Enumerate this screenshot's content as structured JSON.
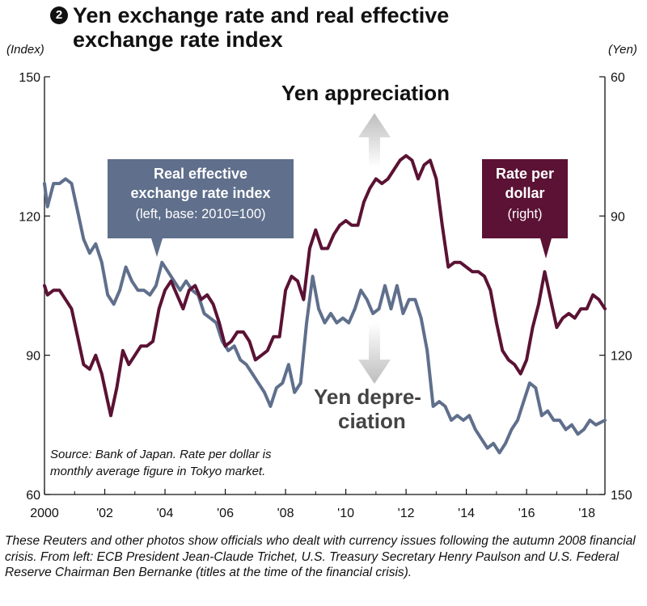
{
  "title_number": "2",
  "title": "Yen exchange rate and real effective exchange rate index",
  "left_unit": "(Index)",
  "right_unit": "(Yen)",
  "labels": {
    "appreciation": "Yen appreciation",
    "depreciation_1": "Yen depre-",
    "depreciation_2": "ciation",
    "reer_line1": "Real effective",
    "reer_line2": "exchange rate index",
    "reer_line3": "(left, base: 2010=100)",
    "rate_line1": "Rate per",
    "rate_line2": "dollar",
    "rate_line3": "(right)",
    "source_1": "Source: Bank of Japan. Rate per dollar is",
    "source_2": "monthly average figure in Tokyo market."
  },
  "caption": "These Reuters and other photos show officials who dealt with currency issues following the autumn 2008 financial crisis. From left: ECB President Jean-Claude Trichet, U.S. Treasury Secretary Henry Paulson and U.S. Federal Reserve Chairman Ben Bernanke (titles at the time of the financial crisis).",
  "colors": {
    "reer": "#5f6f8c",
    "rate": "#5b1234",
    "arrow": "#c4c4c4"
  },
  "chart_data": {
    "type": "line",
    "title": "Yen exchange rate and real effective exchange rate index",
    "x_ticks": [
      "2000",
      "'02",
      "'04",
      "'06",
      "'08",
      "'10",
      "'12",
      "'14",
      "'16",
      "'18"
    ],
    "x_range": [
      2000.0,
      2018.6
    ],
    "left_axis": {
      "label": "(Index)",
      "range": [
        60,
        150
      ],
      "ticks": [
        "150",
        "120",
        "90",
        "60"
      ]
    },
    "right_axis": {
      "label": "(Yen)",
      "range": [
        150,
        60
      ],
      "inverted": true,
      "ticks": [
        "60",
        "90",
        "120",
        "150"
      ]
    },
    "series": [
      {
        "name": "Real effective exchange rate index",
        "axis": "left",
        "x": [
          2000.0,
          2000.1,
          2000.3,
          2000.5,
          2000.7,
          2000.9,
          2001.1,
          2001.3,
          2001.5,
          2001.7,
          2001.9,
          2002.1,
          2002.3,
          2002.5,
          2002.7,
          2002.9,
          2003.1,
          2003.3,
          2003.5,
          2003.7,
          2003.9,
          2004.1,
          2004.3,
          2004.5,
          2004.7,
          2004.9,
          2005.1,
          2005.3,
          2005.5,
          2005.7,
          2005.9,
          2006.1,
          2006.3,
          2006.5,
          2006.7,
          2006.9,
          2007.1,
          2007.3,
          2007.5,
          2007.7,
          2007.9,
          2008.1,
          2008.3,
          2008.5,
          2008.7,
          2008.9,
          2009.1,
          2009.3,
          2009.5,
          2009.7,
          2009.9,
          2010.1,
          2010.3,
          2010.5,
          2010.7,
          2010.9,
          2011.1,
          2011.3,
          2011.5,
          2011.7,
          2011.9,
          2012.1,
          2012.3,
          2012.5,
          2012.7,
          2012.9,
          2013.1,
          2013.3,
          2013.5,
          2013.7,
          2013.9,
          2014.1,
          2014.3,
          2014.5,
          2014.7,
          2014.9,
          2015.1,
          2015.3,
          2015.5,
          2015.7,
          2015.9,
          2016.1,
          2016.3,
          2016.5,
          2016.7,
          2016.9,
          2017.1,
          2017.3,
          2017.5,
          2017.7,
          2017.9,
          2018.1,
          2018.3,
          2018.6
        ],
        "values": [
          127,
          122,
          127,
          127,
          128,
          127,
          121,
          115,
          112,
          114,
          110,
          103,
          101,
          104,
          109,
          106,
          104,
          104,
          103,
          105,
          110,
          108,
          106,
          104,
          106,
          104,
          103,
          99,
          98,
          97,
          93,
          91,
          92,
          89,
          88,
          86,
          84,
          82,
          79,
          83,
          84,
          88,
          82,
          84,
          97,
          107,
          100,
          97,
          99,
          97,
          98,
          97,
          100,
          104,
          102,
          99,
          100,
          105,
          100,
          105,
          99,
          102,
          102,
          98,
          91,
          79,
          80,
          79,
          76,
          77,
          76,
          77,
          74,
          72,
          70,
          71,
          69,
          71,
          74,
          76,
          80,
          84,
          83,
          77,
          78,
          76,
          76,
          74,
          75,
          73,
          74,
          76,
          75,
          76
        ]
      },
      {
        "name": "Rate per dollar",
        "axis": "right",
        "x": [
          2000.0,
          2000.1,
          2000.3,
          2000.5,
          2000.7,
          2000.9,
          2001.1,
          2001.3,
          2001.5,
          2001.7,
          2001.9,
          2002.1,
          2002.2,
          2002.4,
          2002.6,
          2002.8,
          2003.0,
          2003.2,
          2003.4,
          2003.6,
          2003.8,
          2004.0,
          2004.2,
          2004.4,
          2004.6,
          2004.8,
          2005.0,
          2005.2,
          2005.4,
          2005.6,
          2005.8,
          2006.0,
          2006.2,
          2006.4,
          2006.6,
          2006.8,
          2007.0,
          2007.2,
          2007.4,
          2007.6,
          2007.8,
          2008.0,
          2008.2,
          2008.4,
          2008.6,
          2008.8,
          2009.0,
          2009.2,
          2009.4,
          2009.6,
          2009.8,
          2010.0,
          2010.2,
          2010.4,
          2010.6,
          2010.8,
          2011.0,
          2011.2,
          2011.4,
          2011.6,
          2011.8,
          2012.0,
          2012.2,
          2012.4,
          2012.6,
          2012.8,
          2013.0,
          2013.2,
          2013.4,
          2013.6,
          2013.8,
          2014.0,
          2014.2,
          2014.4,
          2014.6,
          2014.8,
          2015.0,
          2015.2,
          2015.4,
          2015.6,
          2015.8,
          2016.0,
          2016.2,
          2016.4,
          2016.6,
          2016.8,
          2017.0,
          2017.2,
          2017.4,
          2017.6,
          2017.8,
          2018.0,
          2018.2,
          2018.4,
          2018.6
        ],
        "values": [
          105,
          107,
          106,
          106,
          108,
          110,
          116,
          122,
          123,
          120,
          124,
          130,
          133,
          127,
          119,
          122,
          120,
          118,
          118,
          117,
          110,
          106,
          104,
          107,
          110,
          106,
          105,
          108,
          107,
          109,
          113,
          118,
          117,
          115,
          115,
          117,
          121,
          120,
          119,
          116,
          116,
          106,
          103,
          104,
          108,
          97,
          93,
          97,
          97,
          94,
          92,
          91,
          92,
          92,
          87,
          84,
          82,
          83,
          82,
          80,
          78,
          77,
          78,
          82,
          79,
          78,
          82,
          92,
          101,
          100,
          100,
          101,
          102,
          102,
          103,
          106,
          113,
          119,
          121,
          122,
          124,
          121,
          114,
          109,
          102,
          108,
          114,
          112,
          111,
          112,
          110,
          110,
          107,
          108,
          110
        ]
      }
    ]
  }
}
